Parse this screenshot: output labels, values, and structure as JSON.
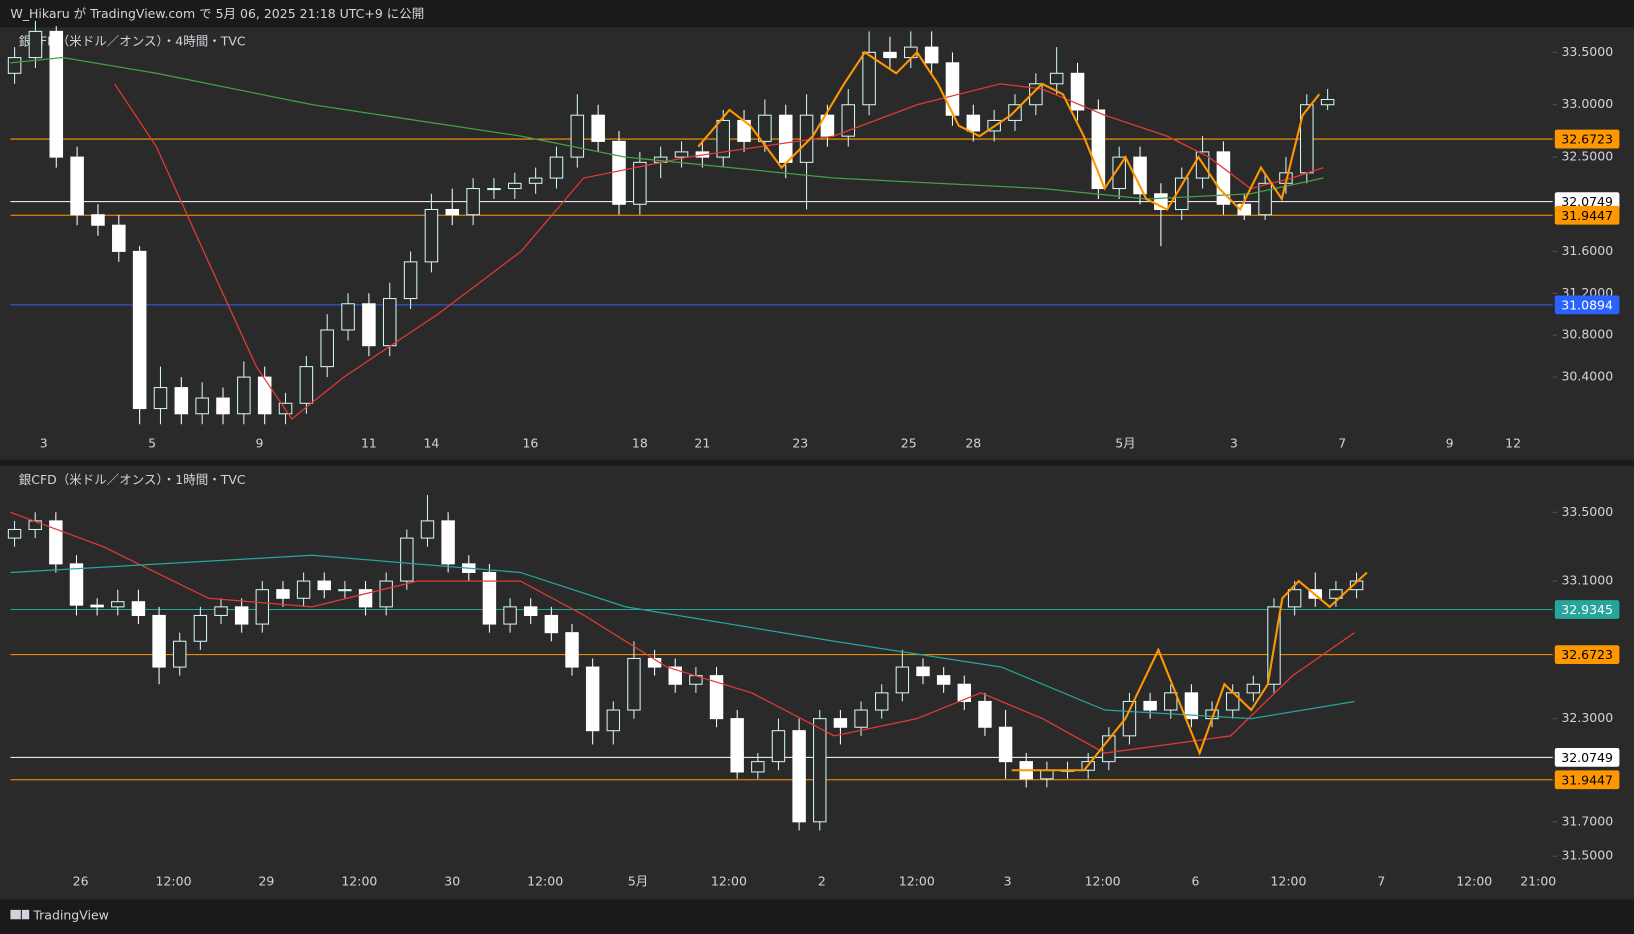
{
  "header": {
    "text": "W_Hikaru が TradingView.com で 5月 06, 2025 21:18 UTC+9 に公開"
  },
  "footer": {
    "brand": "TradingView"
  },
  "chart_data": [
    {
      "type": "candlestick",
      "title": "銀CFD（米ドル／オンス）・4時間・TVC",
      "up_color": "#d1f5f0",
      "down_color": "#ffffff",
      "open": [
        33.3,
        33.45,
        33.7,
        32.5,
        31.95,
        31.85,
        31.6,
        30.1,
        30.3,
        30.05,
        30.2,
        30.05,
        30.4,
        30.05,
        30.15,
        30.5,
        30.85,
        31.1,
        30.7,
        31.15,
        31.5,
        32.0,
        31.95,
        32.2,
        32.2,
        32.25,
        32.3,
        32.5,
        32.9,
        32.65,
        32.05,
        32.45,
        32.5,
        32.55,
        32.5,
        32.85,
        32.65,
        32.9,
        32.45,
        32.9,
        32.7,
        33.0,
        33.5,
        33.45,
        33.55,
        33.4,
        32.9,
        32.75,
        32.85,
        33.0,
        33.2,
        33.3,
        32.95,
        32.2,
        32.5,
        32.15,
        32.0,
        32.3,
        32.55,
        32.05,
        31.95,
        32.25,
        32.35,
        33.0
      ],
      "high": [
        33.55,
        33.8,
        33.75,
        32.6,
        32.05,
        31.95,
        31.65,
        30.5,
        30.4,
        30.35,
        30.3,
        30.55,
        30.5,
        30.25,
        30.6,
        31.0,
        31.2,
        31.2,
        31.3,
        31.6,
        32.15,
        32.2,
        32.3,
        32.3,
        32.35,
        32.4,
        32.6,
        33.1,
        33.0,
        32.75,
        32.55,
        32.6,
        32.65,
        32.65,
        32.95,
        32.95,
        33.05,
        33.0,
        33.1,
        33.0,
        33.15,
        33.7,
        33.65,
        33.7,
        33.7,
        33.5,
        33.0,
        32.95,
        33.1,
        33.3,
        33.55,
        33.4,
        33.05,
        32.6,
        32.6,
        32.25,
        32.4,
        32.7,
        32.65,
        32.15,
        32.35,
        32.5,
        33.1,
        33.15
      ],
      "low": [
        33.2,
        33.35,
        32.4,
        31.85,
        31.75,
        31.5,
        29.95,
        29.95,
        29.95,
        29.95,
        29.95,
        29.95,
        29.95,
        29.95,
        30.05,
        30.4,
        30.75,
        30.6,
        30.6,
        31.05,
        31.4,
        31.85,
        31.85,
        32.1,
        32.1,
        32.15,
        32.2,
        32.4,
        32.55,
        31.95,
        31.95,
        32.3,
        32.4,
        32.4,
        32.4,
        32.55,
        32.55,
        32.3,
        32.0,
        32.6,
        32.6,
        32.9,
        33.35,
        33.35,
        33.3,
        32.8,
        32.65,
        32.65,
        32.75,
        32.9,
        33.1,
        32.85,
        32.1,
        32.1,
        32.05,
        31.65,
        31.9,
        32.2,
        31.95,
        31.9,
        31.9,
        32.15,
        32.25,
        32.95
      ],
      "close": [
        33.45,
        33.7,
        32.5,
        31.95,
        31.85,
        31.6,
        30.1,
        30.3,
        30.05,
        30.2,
        30.05,
        30.4,
        30.05,
        30.15,
        30.5,
        30.85,
        31.1,
        30.7,
        31.15,
        31.5,
        32.0,
        31.95,
        32.2,
        32.2,
        32.25,
        32.3,
        32.5,
        32.9,
        32.65,
        32.05,
        32.45,
        32.5,
        32.55,
        32.5,
        32.85,
        32.65,
        32.9,
        32.45,
        32.9,
        32.7,
        33.0,
        33.5,
        33.45,
        33.55,
        33.4,
        32.9,
        32.75,
        32.85,
        33.0,
        33.2,
        33.3,
        32.95,
        32.2,
        32.5,
        32.15,
        32.0,
        32.3,
        32.55,
        32.05,
        31.95,
        32.25,
        32.35,
        33.0,
        33.05
      ],
      "indicators": [
        {
          "color": "#e53935",
          "x": [
            4.8,
            6.8,
            9.3,
            11.6,
            13.3,
            15.8,
            20.3,
            24.3,
            27.3,
            32.3,
            39.3,
            43.3,
            47.3,
            49.3,
            52.3,
            55.3,
            57.3,
            59.3,
            61.3,
            62.8
          ],
          "values": [
            33.2,
            32.6,
            31.5,
            30.5,
            30.0,
            30.4,
            31.0,
            31.6,
            32.3,
            32.5,
            32.7,
            33.0,
            33.2,
            33.15,
            32.9,
            32.7,
            32.5,
            32.2,
            32.3,
            32.4
          ]
        },
        {
          "color": "#43a047",
          "x": [
            -0.2,
            2.3,
            6.8,
            14.3,
            24.3,
            29.3,
            39.3,
            49.3,
            54.3,
            59.3,
            62.8
          ],
          "values": [
            33.4,
            33.45,
            33.3,
            33.0,
            32.7,
            32.5,
            32.3,
            32.2,
            32.1,
            32.15,
            32.3
          ]
        },
        {
          "color": "#ff9800",
          "x": [
            32.8,
            34.3,
            35.3,
            36.8,
            38.3,
            39.8,
            40.8,
            42.3,
            43.3,
            44.3,
            45.3,
            46.3,
            47.8,
            49.3,
            50.3,
            51.3,
            52.3,
            53.3,
            54.3,
            55.3,
            56.8,
            57.8,
            58.8,
            59.8,
            60.8,
            61.8,
            62.6
          ],
          "values": [
            32.6,
            32.95,
            32.8,
            32.4,
            32.7,
            33.2,
            33.5,
            33.3,
            33.5,
            33.2,
            32.8,
            32.7,
            32.9,
            33.2,
            33.1,
            32.7,
            32.2,
            32.5,
            32.1,
            32.0,
            32.5,
            32.2,
            32.0,
            32.4,
            32.1,
            32.9,
            33.1
          ]
        }
      ],
      "hlines": [
        {
          "value": 32.6723,
          "color": "#ff9800"
        },
        {
          "value": 32.0749,
          "color": "#ffffff"
        },
        {
          "value": 31.9447,
          "color": "#ff9800"
        },
        {
          "value": 31.0894,
          "color": "#2962ff"
        }
      ],
      "xlim": [
        -0.2,
        73.8
      ],
      "ylim": [
        29.9,
        33.7
      ],
      "yticks": [
        {
          "value": 30.4,
          "label": "30.4000"
        },
        {
          "value": 30.8,
          "label": "30.8000"
        },
        {
          "value": 31.2,
          "label": "31.2000"
        },
        {
          "value": 31.6,
          "label": "31.6000"
        },
        {
          "value": 32.5,
          "label": "32.5000"
        },
        {
          "value": 33.0,
          "label": "33.0000"
        },
        {
          "value": 33.5,
          "label": "33.5000"
        }
      ],
      "xticks": [
        {
          "value": 1.4,
          "label": "3"
        },
        {
          "value": 6.6,
          "label": "5"
        },
        {
          "value": 11.75,
          "label": "9"
        },
        {
          "value": 17,
          "label": "11"
        },
        {
          "value": 20,
          "label": "14"
        },
        {
          "value": 24.75,
          "label": "16"
        },
        {
          "value": 30,
          "label": "18"
        },
        {
          "value": 33,
          "label": "21"
        },
        {
          "value": 37.7,
          "label": "23"
        },
        {
          "value": 42.9,
          "label": "25"
        },
        {
          "value": 46,
          "label": "28"
        },
        {
          "value": 53.3,
          "label": "5月"
        },
        {
          "value": 58.5,
          "label": "3"
        },
        {
          "value": 63.7,
          "label": "7"
        },
        {
          "value": 68.85,
          "label": "9"
        },
        {
          "value": 71.9,
          "label": "12"
        }
      ]
    },
    {
      "type": "candlestick",
      "title": "銀CFD（米ドル／オンス）・1時間・TVC",
      "up_color": "#d1f5f0",
      "down_color": "#ffffff",
      "open": [
        33.35,
        33.4,
        33.45,
        33.2,
        32.96,
        32.95,
        32.98,
        32.9,
        32.6,
        32.75,
        32.9,
        32.95,
        32.85,
        33.05,
        33.0,
        33.1,
        33.05,
        33.05,
        32.95,
        33.1,
        33.35,
        33.45,
        33.2,
        33.15,
        32.85,
        32.95,
        32.9,
        32.8,
        32.6,
        32.23,
        32.35,
        32.65,
        32.6,
        32.5,
        32.55,
        32.3,
        31.99,
        32.05,
        32.23,
        31.7,
        32.3,
        32.25,
        32.35,
        32.45,
        32.6,
        32.55,
        32.5,
        32.4,
        32.25,
        32.05,
        31.95,
        32.0,
        32.0,
        32.05,
        32.2,
        32.4,
        32.35,
        32.45,
        32.3,
        32.35,
        32.45,
        32.5,
        32.95,
        33.05,
        33.0,
        33.05
      ],
      "high": [
        33.45,
        33.5,
        33.5,
        33.25,
        33.0,
        33.05,
        33.05,
        32.95,
        32.8,
        32.95,
        33.0,
        33.0,
        33.1,
        33.1,
        33.15,
        33.15,
        33.1,
        33.1,
        33.15,
        33.4,
        33.6,
        33.5,
        33.25,
        33.2,
        33.0,
        33.0,
        32.95,
        32.85,
        32.65,
        32.4,
        32.75,
        32.7,
        32.65,
        32.6,
        32.6,
        32.35,
        32.1,
        32.3,
        32.3,
        32.35,
        32.35,
        32.4,
        32.5,
        32.7,
        32.65,
        32.6,
        32.55,
        32.45,
        32.35,
        32.1,
        32.05,
        32.05,
        32.1,
        32.25,
        32.45,
        32.45,
        32.5,
        32.5,
        32.4,
        32.5,
        32.55,
        33.0,
        33.1,
        33.15,
        33.1,
        33.15
      ],
      "low": [
        33.3,
        33.35,
        33.15,
        32.9,
        32.9,
        32.9,
        32.85,
        32.5,
        32.55,
        32.7,
        32.85,
        32.8,
        32.8,
        32.95,
        32.95,
        33.0,
        33.0,
        32.9,
        32.9,
        33.05,
        33.3,
        33.15,
        33.1,
        32.8,
        32.8,
        32.85,
        32.75,
        32.55,
        32.15,
        32.15,
        32.3,
        32.55,
        32.45,
        32.45,
        32.25,
        31.95,
        31.95,
        32.0,
        31.65,
        31.65,
        32.15,
        32.2,
        32.3,
        32.4,
        32.5,
        32.45,
        32.35,
        32.2,
        31.95,
        31.9,
        31.9,
        31.95,
        31.95,
        32.0,
        32.15,
        32.3,
        32.3,
        32.25,
        32.25,
        32.3,
        32.4,
        32.45,
        32.9,
        32.95,
        32.95,
        33.0
      ],
      "close": [
        33.4,
        33.45,
        33.2,
        32.96,
        32.95,
        32.98,
        32.9,
        32.6,
        32.75,
        32.9,
        32.95,
        32.85,
        33.05,
        33.0,
        33.1,
        33.05,
        33.05,
        32.95,
        33.1,
        33.35,
        33.45,
        33.2,
        33.15,
        32.85,
        32.95,
        32.9,
        32.8,
        32.6,
        32.23,
        32.35,
        32.65,
        32.6,
        32.5,
        32.55,
        32.3,
        31.99,
        32.05,
        32.23,
        31.7,
        32.3,
        32.25,
        32.35,
        32.45,
        32.6,
        32.55,
        32.5,
        32.4,
        32.25,
        32.05,
        31.95,
        32.0,
        32.0,
        32.05,
        32.2,
        32.4,
        32.35,
        32.45,
        32.3,
        32.35,
        32.45,
        32.5,
        32.95,
        33.05,
        33.0,
        33.05,
        33.1
      ],
      "indicators": [
        {
          "color": "#e53935",
          "x": [
            -0.2,
            4.3,
            9.4,
            14.4,
            19.5,
            24.5,
            27.6,
            31.6,
            35.7,
            39.7,
            43.7,
            46.8,
            49.8,
            52.8,
            55.9,
            58.9,
            61.9,
            64.9
          ],
          "values": [
            33.5,
            33.3,
            33.0,
            32.95,
            33.1,
            33.1,
            32.9,
            32.6,
            32.45,
            32.2,
            32.3,
            32.45,
            32.3,
            32.1,
            32.15,
            32.2,
            32.55,
            32.8
          ]
        },
        {
          "color": "#26a69a",
          "x": [
            -0.2,
            14.4,
            24.5,
            29.6,
            39.7,
            47.8,
            52.8,
            59.9,
            64.9
          ],
          "values": [
            33.15,
            33.25,
            33.15,
            32.95,
            32.75,
            32.6,
            32.35,
            32.3,
            32.4
          ]
        },
        {
          "color": "#ff9800",
          "x": [
            48.3,
            51.8,
            53.8,
            55.4,
            56.4,
            57.4,
            58.6,
            59.9,
            60.7,
            61.4,
            62.2,
            63.7,
            65.5
          ],
          "values": [
            32.0,
            32.0,
            32.3,
            32.7,
            32.4,
            32.1,
            32.5,
            32.35,
            32.5,
            33.0,
            33.1,
            32.95,
            33.15
          ]
        }
      ],
      "hlines": [
        {
          "value": 32.9345,
          "color": "#26a69a"
        },
        {
          "value": 32.6723,
          "color": "#ff9800"
        },
        {
          "value": 32.0749,
          "color": "#ffffff"
        },
        {
          "value": 31.9447,
          "color": "#ff9800"
        }
      ],
      "xlim": [
        -0.2,
        74.5
      ],
      "ylim": [
        31.4,
        33.63
      ],
      "yticks": [
        {
          "value": 31.5,
          "label": "31.5000"
        },
        {
          "value": 31.7,
          "label": "31.7000"
        },
        {
          "value": 32.3,
          "label": "32.3000"
        },
        {
          "value": 33.1,
          "label": "33.1000"
        },
        {
          "value": 33.5,
          "label": "33.5000"
        }
      ],
      "xticks": [
        {
          "value": 3.2,
          "label": "26"
        },
        {
          "value": 7.7,
          "label": "12:00"
        },
        {
          "value": 12.2,
          "label": "29"
        },
        {
          "value": 16.7,
          "label": "12:00"
        },
        {
          "value": 21.2,
          "label": "30"
        },
        {
          "value": 25.7,
          "label": "12:00"
        },
        {
          "value": 30.2,
          "label": "5月"
        },
        {
          "value": 34.6,
          "label": "12:00"
        },
        {
          "value": 39.1,
          "label": "2"
        },
        {
          "value": 43.7,
          "label": "12:00"
        },
        {
          "value": 48.1,
          "label": "3"
        },
        {
          "value": 52.7,
          "label": "12:00"
        },
        {
          "value": 57.2,
          "label": "6"
        },
        {
          "value": 61.7,
          "label": "12:00"
        },
        {
          "value": 66.2,
          "label": "7"
        },
        {
          "value": 70.7,
          "label": "12:00"
        },
        {
          "value": 73.8,
          "label": "21:00"
        }
      ]
    }
  ]
}
